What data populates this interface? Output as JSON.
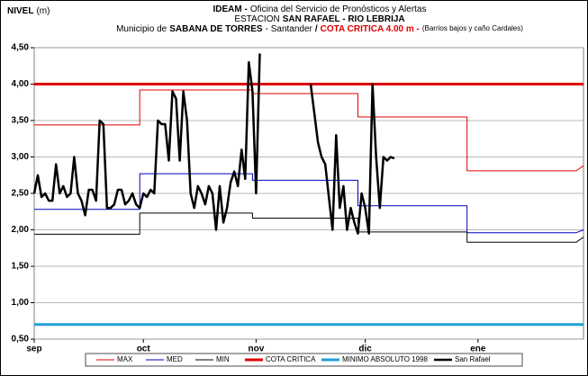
{
  "chart_data": {
    "type": "line",
    "title_lines": [
      [
        {
          "text": "IDEAM -",
          "style": "bold"
        },
        {
          "text": "Oficina del Servicio de Pronósticos y Alertas",
          "style": "normal"
        }
      ],
      [
        {
          "text": "ESTACION",
          "style": "normal"
        },
        {
          "text": "SAN RAFAEL - RIO LEBRIJA",
          "style": "bold"
        }
      ],
      [
        {
          "text": "Municipio de",
          "style": "normal"
        },
        {
          "text": "SABANA DE TORRES",
          "style": "bold"
        },
        {
          "text": "- Santander",
          "style": "normal"
        },
        {
          "text": "/",
          "style": "bold"
        },
        {
          "text": "COTA CRITICA 4.00 m -",
          "style": "red"
        },
        {
          "text": "(Barrios bajos y caño Cardales)",
          "style": "small"
        }
      ]
    ],
    "y_label": "NIVEL",
    "y_unit": "(m)",
    "xlim": [
      0,
      151
    ],
    "xticks": [
      {
        "value": 0,
        "label": "sep"
      },
      {
        "value": 30,
        "label": "oct"
      },
      {
        "value": 61,
        "label": "nov"
      },
      {
        "value": 91,
        "label": "dic"
      },
      {
        "value": 122,
        "label": "ene"
      }
    ],
    "ylim": [
      0.5,
      4.5
    ],
    "yticks": [
      {
        "value": 0.5,
        "label": "0,50"
      },
      {
        "value": 1,
        "label": "1,00"
      },
      {
        "value": 1.5,
        "label": "1,50"
      },
      {
        "value": 2,
        "label": "2,00"
      },
      {
        "value": 2.5,
        "label": "2,50"
      },
      {
        "value": 3,
        "label": "3,00"
      },
      {
        "value": 3.5,
        "label": "3,50"
      },
      {
        "value": 4,
        "label": "4,00"
      },
      {
        "value": 4.5,
        "label": "4,50"
      }
    ],
    "grid": true,
    "legend": "bottom",
    "series": [
      {
        "name": "MAX",
        "color": "#e00000",
        "width": 1,
        "x": [
          0,
          29,
          29,
          60,
          60,
          89,
          89,
          119,
          119,
          149,
          151
        ],
        "values": [
          3.44,
          3.44,
          3.92,
          3.92,
          3.87,
          3.87,
          3.55,
          3.55,
          2.81,
          2.81,
          2.88
        ]
      },
      {
        "name": "MED",
        "color": "#0000c0",
        "width": 1,
        "x": [
          0,
          29,
          29,
          60,
          60,
          89,
          89,
          119,
          119,
          149,
          151
        ],
        "values": [
          2.28,
          2.28,
          2.77,
          2.77,
          2.68,
          2.68,
          2.33,
          2.33,
          1.96,
          1.96,
          2.0
        ]
      },
      {
        "name": "MIN",
        "color": "#000000",
        "width": 1,
        "x": [
          0,
          29,
          29,
          60,
          60,
          89,
          89,
          119,
          119,
          149,
          151
        ],
        "values": [
          1.94,
          1.94,
          2.23,
          2.23,
          2.16,
          2.16,
          1.97,
          1.97,
          1.83,
          1.83,
          1.9
        ]
      },
      {
        "name": "COTA CRITICA",
        "color": "#e00000",
        "width": 3,
        "x": [
          0,
          151
        ],
        "values": [
          4.0,
          4.0
        ]
      },
      {
        "name": "MINIMO ABSOLUTO 1998",
        "color": "#1fa0d8",
        "width": 3,
        "x": [
          0,
          151
        ],
        "values": [
          0.7,
          0.7
        ]
      },
      {
        "name": "San Rafael",
        "color": "#000000",
        "width": 2.5,
        "x": [
          0,
          1,
          2,
          3,
          4,
          5,
          6,
          7,
          8,
          9,
          10,
          11,
          12,
          13,
          14,
          15,
          16,
          17,
          18,
          19,
          20,
          21,
          22,
          23,
          24,
          25,
          26,
          27,
          28,
          29,
          30,
          31,
          32,
          33,
          34,
          35,
          36,
          37,
          38,
          39,
          40,
          41,
          42,
          43,
          44,
          45,
          46,
          47,
          48,
          49,
          50,
          51,
          52,
          53,
          54,
          55,
          56,
          57,
          58,
          59,
          60,
          61,
          62,
          63,
          76,
          77,
          78,
          79,
          80,
          81,
          82,
          83,
          84,
          85,
          86,
          87,
          88,
          89,
          90,
          91,
          92,
          93,
          94,
          95,
          96,
          97,
          98,
          99
        ],
        "values": [
          2.5,
          2.75,
          2.45,
          2.5,
          2.4,
          2.4,
          2.9,
          2.5,
          2.6,
          2.45,
          2.5,
          3.0,
          2.5,
          2.4,
          2.2,
          2.55,
          2.55,
          2.4,
          3.5,
          3.45,
          2.3,
          2.3,
          2.35,
          2.55,
          2.55,
          2.35,
          2.4,
          2.5,
          2.35,
          2.3,
          2.5,
          2.45,
          2.55,
          2.5,
          3.5,
          3.45,
          3.45,
          2.95,
          3.9,
          3.8,
          2.95,
          3.9,
          3.5,
          2.5,
          2.3,
          2.6,
          2.5,
          2.35,
          2.6,
          2.5,
          2.0,
          2.6,
          2.1,
          2.3,
          2.65,
          2.8,
          2.6,
          3.1,
          2.7,
          4.3,
          3.9,
          2.5,
          4.42,
          null,
          4.0,
          3.6,
          3.2,
          3.0,
          2.9,
          2.45,
          2.0,
          3.3,
          2.3,
          2.6,
          2.0,
          2.3,
          2.1,
          1.95,
          2.5,
          2.3,
          1.95,
          4.0,
          3.0,
          2.3,
          3.0,
          2.95,
          3.0,
          2.98
        ]
      }
    ]
  }
}
